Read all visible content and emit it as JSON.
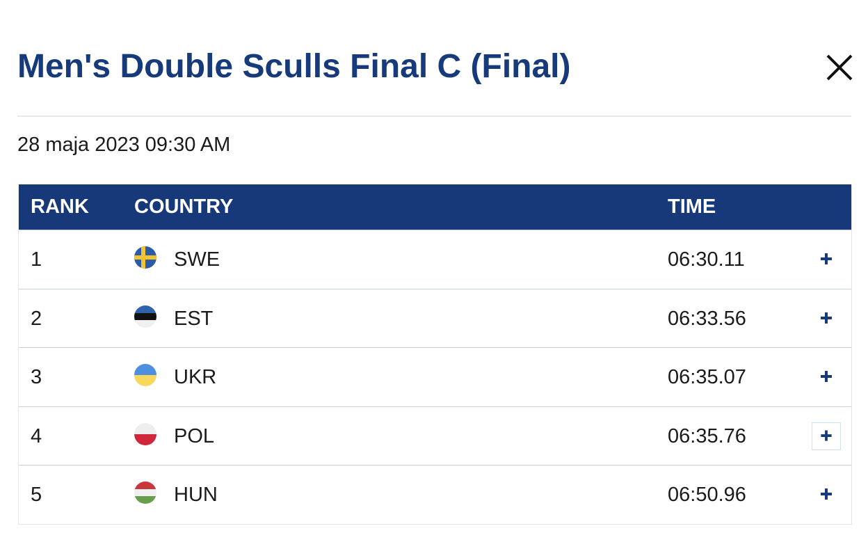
{
  "header": {
    "title": "Men's Double Sculls Final C (Final)",
    "date": "28 maja 2023 09:30 AM"
  },
  "table": {
    "columns": [
      "RANK",
      "COUNTRY",
      "TIME"
    ],
    "rows": [
      [
        1,
        "SWE",
        "06:30.11"
      ],
      [
        2,
        "EST",
        "06:33.56"
      ],
      [
        3,
        "UKR",
        "06:35.07"
      ],
      [
        4,
        "POL",
        "06:35.76"
      ],
      [
        5,
        "HUN",
        "06:50.96"
      ]
    ]
  }
}
